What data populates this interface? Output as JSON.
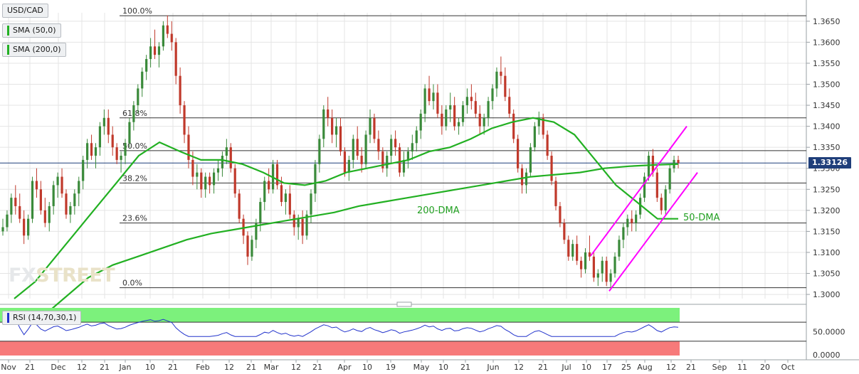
{
  "symbol": "USD/CAD",
  "indicators": {
    "sma50": "SMA (50,0)",
    "sma200": "SMA (200,0)",
    "rsi": "RSI (14,70,30,1)"
  },
  "watermark": {
    "part1": "FX",
    "part2": "STREET"
  },
  "last_price": "1.33126",
  "colors": {
    "candle_up": "#3a8a3a",
    "candle_down": "#c0392b",
    "sma": "#22b022",
    "channel": "#ff00ff",
    "rsi_line": "#2233cc",
    "rsi_overbought": "#7cf17c",
    "rsi_oversold": "#f77a7a"
  },
  "chart_data": {
    "type": "candlestick",
    "x_ticks": [
      "Nov",
      "21",
      "Dec",
      "12",
      "21",
      "Jan",
      "10",
      "21",
      "Feb",
      "12",
      "21",
      "Mar",
      "12",
      "21",
      "Apr",
      "10",
      "19",
      "May",
      "10",
      "21",
      "Jun",
      "12",
      "21",
      "Jul",
      "10",
      "17",
      "25",
      "Aug",
      "12",
      "21",
      "Sep",
      "11",
      "20",
      "Oct"
    ],
    "y_ticks": [
      "1.3650",
      "1.3600",
      "1.3550",
      "1.3500",
      "1.3450",
      "1.3400",
      "1.3350",
      "1.3300",
      "1.3250",
      "1.3200",
      "1.3150",
      "1.3100",
      "1.3050",
      "1.3000"
    ],
    "fib_levels": [
      {
        "label": "100.0%",
        "value": 1.3663
      },
      {
        "label": "61.8%",
        "value": 1.342
      },
      {
        "label": "50.0%",
        "value": 1.3342
      },
      {
        "label": "38.2%",
        "value": 1.3265
      },
      {
        "label": "23.6%",
        "value": 1.317
      },
      {
        "label": "0.0%",
        "value": 1.3016
      }
    ],
    "annotations": [
      "200-DMA",
      "50-DMA"
    ],
    "rsi": {
      "y_ticks": [
        "50.0000",
        "0.0000"
      ],
      "overbought": 70,
      "oversold": 30,
      "last": 63
    },
    "ohlc": [
      [
        1.315,
        1.318,
        1.314,
        1.316
      ],
      [
        1.316,
        1.32,
        1.315,
        1.319
      ],
      [
        1.319,
        1.324,
        1.317,
        1.323
      ],
      [
        1.323,
        1.326,
        1.319,
        1.321
      ],
      [
        1.321,
        1.324,
        1.317,
        1.318
      ],
      [
        1.318,
        1.32,
        1.312,
        1.314
      ],
      [
        1.314,
        1.319,
        1.313,
        1.318
      ],
      [
        1.318,
        1.328,
        1.317,
        1.327
      ],
      [
        1.327,
        1.33,
        1.323,
        1.325
      ],
      [
        1.325,
        1.327,
        1.319,
        1.32
      ],
      [
        1.32,
        1.323,
        1.316,
        1.317
      ],
      [
        1.317,
        1.322,
        1.315,
        1.321
      ],
      [
        1.321,
        1.327,
        1.319,
        1.326
      ],
      [
        1.326,
        1.329,
        1.323,
        1.328
      ],
      [
        1.328,
        1.33,
        1.323,
        1.324
      ],
      [
        1.324,
        1.325,
        1.318,
        1.319
      ],
      [
        1.319,
        1.322,
        1.317,
        1.321
      ],
      [
        1.321,
        1.325,
        1.319,
        1.324
      ],
      [
        1.324,
        1.328,
        1.321,
        1.327
      ],
      [
        1.327,
        1.333,
        1.325,
        1.332
      ],
      [
        1.332,
        1.337,
        1.33,
        1.336
      ],
      [
        1.336,
        1.338,
        1.332,
        1.333
      ],
      [
        1.333,
        1.336,
        1.33,
        1.335
      ],
      [
        1.335,
        1.341,
        1.333,
        1.34
      ],
      [
        1.34,
        1.344,
        1.338,
        1.342
      ],
      [
        1.342,
        1.344,
        1.336,
        1.338
      ],
      [
        1.338,
        1.34,
        1.333,
        1.335
      ],
      [
        1.335,
        1.336,
        1.331,
        1.332
      ],
      [
        1.332,
        1.334,
        1.329,
        1.333
      ],
      [
        1.333,
        1.337,
        1.331,
        1.336
      ],
      [
        1.336,
        1.342,
        1.335,
        1.341
      ],
      [
        1.341,
        1.346,
        1.339,
        1.345
      ],
      [
        1.345,
        1.35,
        1.343,
        1.349
      ],
      [
        1.349,
        1.354,
        1.347,
        1.353
      ],
      [
        1.353,
        1.357,
        1.351,
        1.356
      ],
      [
        1.356,
        1.361,
        1.354,
        1.359
      ],
      [
        1.359,
        1.363,
        1.356,
        1.357
      ],
      [
        1.357,
        1.36,
        1.354,
        1.359
      ],
      [
        1.359,
        1.365,
        1.358,
        1.364
      ],
      [
        1.364,
        1.3664,
        1.361,
        1.362
      ],
      [
        1.362,
        1.365,
        1.358,
        1.36
      ],
      [
        1.36,
        1.361,
        1.35,
        1.352
      ],
      [
        1.352,
        1.354,
        1.343,
        1.345
      ],
      [
        1.345,
        1.346,
        1.336,
        1.338
      ],
      [
        1.338,
        1.34,
        1.33,
        1.332
      ],
      [
        1.332,
        1.334,
        1.326,
        1.328
      ],
      [
        1.328,
        1.331,
        1.325,
        1.329
      ],
      [
        1.329,
        1.33,
        1.323,
        1.325
      ],
      [
        1.325,
        1.329,
        1.323,
        1.328
      ],
      [
        1.328,
        1.329,
        1.324,
        1.326
      ],
      [
        1.326,
        1.33,
        1.324,
        1.329
      ],
      [
        1.329,
        1.332,
        1.327,
        1.33
      ],
      [
        1.33,
        1.334,
        1.328,
        1.333
      ],
      [
        1.333,
        1.337,
        1.331,
        1.335
      ],
      [
        1.335,
        1.336,
        1.329,
        1.33
      ],
      [
        1.33,
        1.331,
        1.323,
        1.324
      ],
      [
        1.324,
        1.325,
        1.317,
        1.318
      ],
      [
        1.318,
        1.319,
        1.312,
        1.314
      ],
      [
        1.314,
        1.315,
        1.307,
        1.309
      ],
      [
        1.309,
        1.314,
        1.308,
        1.313
      ],
      [
        1.313,
        1.318,
        1.311,
        1.317
      ],
      [
        1.317,
        1.323,
        1.315,
        1.322
      ],
      [
        1.322,
        1.328,
        1.32,
        1.327
      ],
      [
        1.327,
        1.33,
        1.324,
        1.325
      ],
      [
        1.325,
        1.332,
        1.324,
        1.331
      ],
      [
        1.331,
        1.332,
        1.325,
        1.326
      ],
      [
        1.326,
        1.328,
        1.321,
        1.322
      ],
      [
        1.322,
        1.325,
        1.319,
        1.324
      ],
      [
        1.324,
        1.326,
        1.318,
        1.319
      ],
      [
        1.319,
        1.32,
        1.314,
        1.316
      ],
      [
        1.316,
        1.319,
        1.313,
        1.318
      ],
      [
        1.318,
        1.32,
        1.312,
        1.314
      ],
      [
        1.314,
        1.32,
        1.313,
        1.319
      ],
      [
        1.319,
        1.325,
        1.317,
        1.324
      ],
      [
        1.324,
        1.332,
        1.322,
        1.331
      ],
      [
        1.331,
        1.338,
        1.329,
        1.337
      ],
      [
        1.337,
        1.345,
        1.335,
        1.344
      ],
      [
        1.344,
        1.347,
        1.34,
        1.342
      ],
      [
        1.342,
        1.344,
        1.336,
        1.338
      ],
      [
        1.338,
        1.342,
        1.335,
        1.34
      ],
      [
        1.34,
        1.342,
        1.333,
        1.334
      ],
      [
        1.334,
        1.335,
        1.328,
        1.329
      ],
      [
        1.329,
        1.333,
        1.327,
        1.332
      ],
      [
        1.332,
        1.338,
        1.33,
        1.337
      ],
      [
        1.337,
        1.34,
        1.332,
        1.333
      ],
      [
        1.333,
        1.335,
        1.329,
        1.331
      ],
      [
        1.331,
        1.339,
        1.33,
        1.338
      ],
      [
        1.338,
        1.344,
        1.336,
        1.342
      ],
      [
        1.342,
        1.343,
        1.336,
        1.337
      ],
      [
        1.337,
        1.339,
        1.332,
        1.334
      ],
      [
        1.334,
        1.335,
        1.329,
        1.33
      ],
      [
        1.33,
        1.334,
        1.328,
        1.333
      ],
      [
        1.333,
        1.338,
        1.331,
        1.337
      ],
      [
        1.337,
        1.339,
        1.333,
        1.335
      ],
      [
        1.335,
        1.336,
        1.328,
        1.329
      ],
      [
        1.329,
        1.334,
        1.328,
        1.332
      ],
      [
        1.332,
        1.335,
        1.33,
        1.334
      ],
      [
        1.334,
        1.338,
        1.332,
        1.336
      ],
      [
        1.336,
        1.34,
        1.334,
        1.339
      ],
      [
        1.339,
        1.344,
        1.337,
        1.343
      ],
      [
        1.343,
        1.35,
        1.341,
        1.349
      ],
      [
        1.349,
        1.352,
        1.345,
        1.346
      ],
      [
        1.346,
        1.35,
        1.344,
        1.348
      ],
      [
        1.348,
        1.35,
        1.342,
        1.343
      ],
      [
        1.343,
        1.345,
        1.338,
        1.34
      ],
      [
        1.34,
        1.345,
        1.339,
        1.344
      ],
      [
        1.344,
        1.348,
        1.341,
        1.345
      ],
      [
        1.345,
        1.347,
        1.339,
        1.34
      ],
      [
        1.34,
        1.342,
        1.338,
        1.341
      ],
      [
        1.341,
        1.346,
        1.34,
        1.345
      ],
      [
        1.345,
        1.349,
        1.343,
        1.347
      ],
      [
        1.347,
        1.35,
        1.344,
        1.346
      ],
      [
        1.346,
        1.348,
        1.342,
        1.343
      ],
      [
        1.343,
        1.345,
        1.338,
        1.34
      ],
      [
        1.34,
        1.343,
        1.338,
        1.342
      ],
      [
        1.342,
        1.347,
        1.34,
        1.346
      ],
      [
        1.346,
        1.35,
        1.344,
        1.349
      ],
      [
        1.349,
        1.354,
        1.347,
        1.353
      ],
      [
        1.353,
        1.3566,
        1.35,
        1.352
      ],
      [
        1.352,
        1.354,
        1.346,
        1.347
      ],
      [
        1.347,
        1.349,
        1.342,
        1.343
      ],
      [
        1.343,
        1.344,
        1.336,
        1.337
      ],
      [
        1.337,
        1.338,
        1.329,
        1.33
      ],
      [
        1.33,
        1.331,
        1.324,
        1.326
      ],
      [
        1.326,
        1.33,
        1.324,
        1.329
      ],
      [
        1.329,
        1.336,
        1.328,
        1.335
      ],
      [
        1.335,
        1.341,
        1.334,
        1.34
      ],
      [
        1.34,
        1.3435,
        1.338,
        1.342
      ],
      [
        1.342,
        1.343,
        1.337,
        1.338
      ],
      [
        1.338,
        1.339,
        1.332,
        1.333
      ],
      [
        1.333,
        1.334,
        1.326,
        1.327
      ],
      [
        1.327,
        1.328,
        1.32,
        1.321
      ],
      [
        1.321,
        1.322,
        1.316,
        1.317
      ],
      [
        1.317,
        1.318,
        1.312,
        1.313
      ],
      [
        1.313,
        1.314,
        1.308,
        1.309
      ],
      [
        1.309,
        1.313,
        1.308,
        1.312
      ],
      [
        1.312,
        1.314,
        1.307,
        1.308
      ],
      [
        1.308,
        1.309,
        1.304,
        1.306
      ],
      [
        1.306,
        1.311,
        1.305,
        1.31
      ],
      [
        1.31,
        1.314,
        1.308,
        1.309
      ],
      [
        1.309,
        1.31,
        1.303,
        1.304
      ],
      [
        1.304,
        1.306,
        1.302,
        1.305
      ],
      [
        1.305,
        1.309,
        1.303,
        1.308
      ],
      [
        1.308,
        1.309,
        1.302,
        1.303
      ],
      [
        1.303,
        1.306,
        1.3016,
        1.305
      ],
      [
        1.305,
        1.31,
        1.304,
        1.309
      ],
      [
        1.309,
        1.314,
        1.308,
        1.313
      ],
      [
        1.313,
        1.317,
        1.311,
        1.316
      ],
      [
        1.316,
        1.319,
        1.314,
        1.318
      ],
      [
        1.318,
        1.32,
        1.315,
        1.317
      ],
      [
        1.317,
        1.32,
        1.315,
        1.319
      ],
      [
        1.319,
        1.324,
        1.318,
        1.323
      ],
      [
        1.323,
        1.329,
        1.322,
        1.328
      ],
      [
        1.328,
        1.334,
        1.327,
        1.333
      ],
      [
        1.333,
        1.3346,
        1.328,
        1.329
      ],
      [
        1.329,
        1.33,
        1.322,
        1.323
      ],
      [
        1.323,
        1.324,
        1.319,
        1.32
      ],
      [
        1.32,
        1.326,
        1.319,
        1.325
      ],
      [
        1.325,
        1.331,
        1.324,
        1.33
      ],
      [
        1.33,
        1.333,
        1.329,
        1.332
      ],
      [
        1.332,
        1.333,
        1.33,
        1.3313
      ]
    ],
    "sma50": [
      1.299,
      1.303,
      1.309,
      1.315,
      1.321,
      1.327,
      1.333,
      1.3362,
      1.334,
      1.332,
      1.332,
      1.331,
      1.329,
      1.3265,
      1.326,
      1.327,
      1.329,
      1.33,
      1.331,
      1.332,
      1.334,
      1.335,
      1.337,
      1.3395,
      1.341,
      1.342,
      1.341,
      1.338,
      1.332,
      1.326,
      1.322,
      1.318,
      1.318
    ],
    "sma200": [
      1.294,
      1.299,
      1.304,
      1.307,
      1.309,
      1.311,
      1.313,
      1.3145,
      1.3155,
      1.3165,
      1.3175,
      1.3185,
      1.3195,
      1.321,
      1.322,
      1.323,
      1.324,
      1.325,
      1.326,
      1.327,
      1.328,
      1.3285,
      1.329,
      1.33,
      1.3305,
      1.3308,
      1.331
    ]
  }
}
